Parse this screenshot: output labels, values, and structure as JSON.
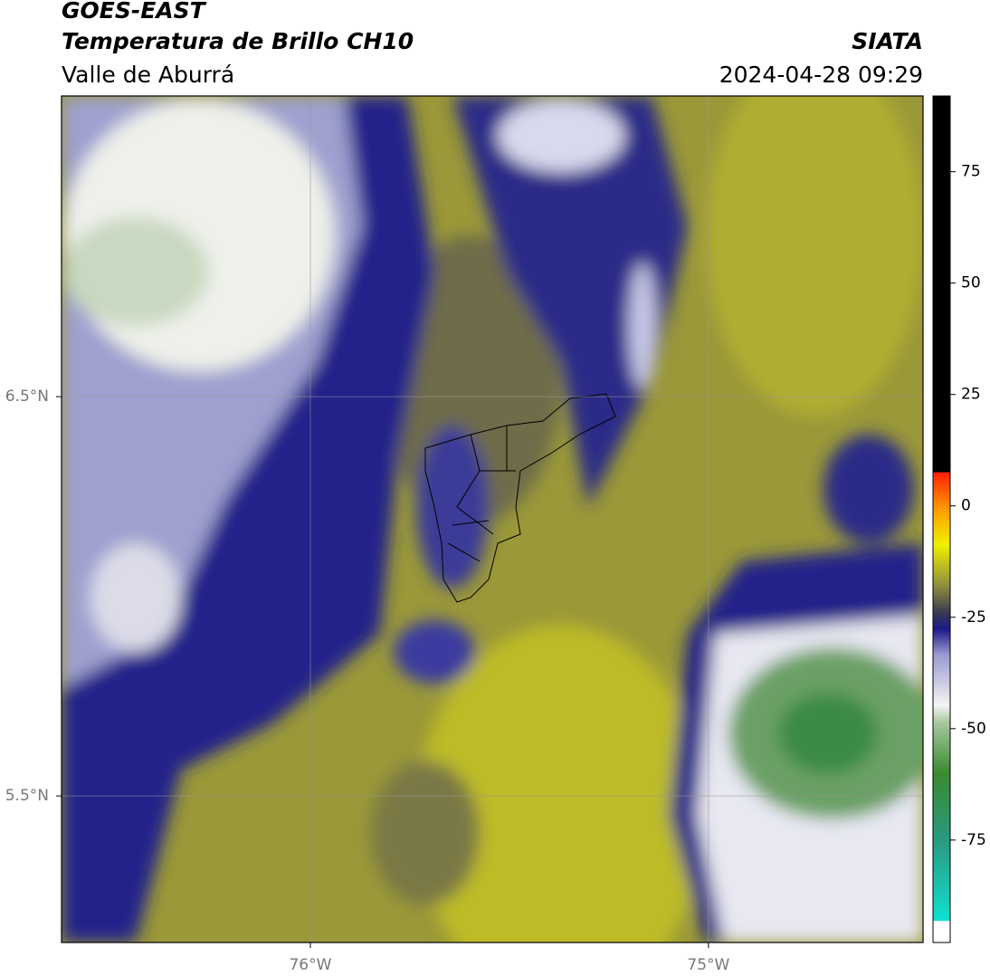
{
  "header": {
    "title": "GOES-EAST",
    "subtitle": "Temperatura de Brillo CH10",
    "region": "Valle de Aburrá",
    "source": "SIATA",
    "timestamp": "2024-04-28 09:29"
  },
  "map": {
    "xlim": [
      -76.625,
      -74.461
    ],
    "ylim": [
      5.133,
      7.253
    ],
    "xticks": [
      {
        "value": -76,
        "label": "76°W"
      },
      {
        "value": -75,
        "label": "75°W"
      }
    ],
    "yticks": [
      {
        "value": 6.5,
        "label": "6.5°N"
      },
      {
        "value": 5.5,
        "label": "5.5°N"
      }
    ],
    "grid": true
  },
  "colorbar": {
    "lim": [
      -98,
      92
    ],
    "ticks": [
      -75,
      -50,
      -25,
      0,
      25,
      50,
      75
    ]
  }
}
